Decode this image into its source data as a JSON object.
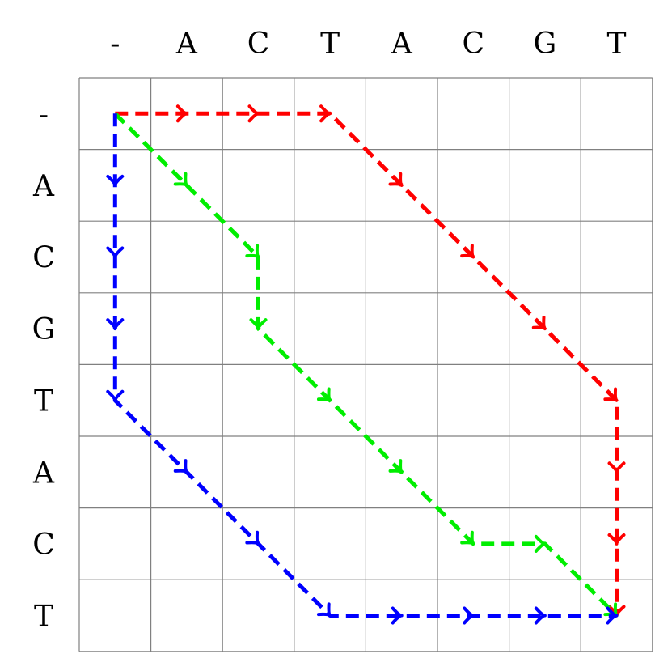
{
  "columns": [
    "-",
    "A",
    "C",
    "T",
    "A",
    "C",
    "G",
    "T"
  ],
  "rows": [
    "-",
    "A",
    "C",
    "G",
    "T",
    "A",
    "C",
    "T"
  ],
  "paths": [
    {
      "color": "#ff0000",
      "name": "red-path",
      "cells": [
        [
          0,
          0
        ],
        [
          0,
          1
        ],
        [
          0,
          2
        ],
        [
          0,
          3
        ],
        [
          1,
          4
        ],
        [
          2,
          5
        ],
        [
          3,
          6
        ],
        [
          4,
          7
        ],
        [
          5,
          7
        ],
        [
          6,
          7
        ],
        [
          7,
          7
        ]
      ]
    },
    {
      "color": "#00ee00",
      "name": "green-path",
      "cells": [
        [
          0,
          0
        ],
        [
          1,
          1
        ],
        [
          2,
          2
        ],
        [
          3,
          2
        ],
        [
          4,
          3
        ],
        [
          5,
          4
        ],
        [
          6,
          5
        ],
        [
          6,
          6
        ],
        [
          7,
          7
        ]
      ]
    },
    {
      "color": "#0000ff",
      "name": "blue-path",
      "cells": [
        [
          0,
          0
        ],
        [
          1,
          0
        ],
        [
          2,
          0
        ],
        [
          3,
          0
        ],
        [
          4,
          0
        ],
        [
          5,
          1
        ],
        [
          6,
          2
        ],
        [
          7,
          3
        ],
        [
          7,
          4
        ],
        [
          7,
          5
        ],
        [
          7,
          6
        ],
        [
          7,
          7
        ]
      ]
    }
  ]
}
